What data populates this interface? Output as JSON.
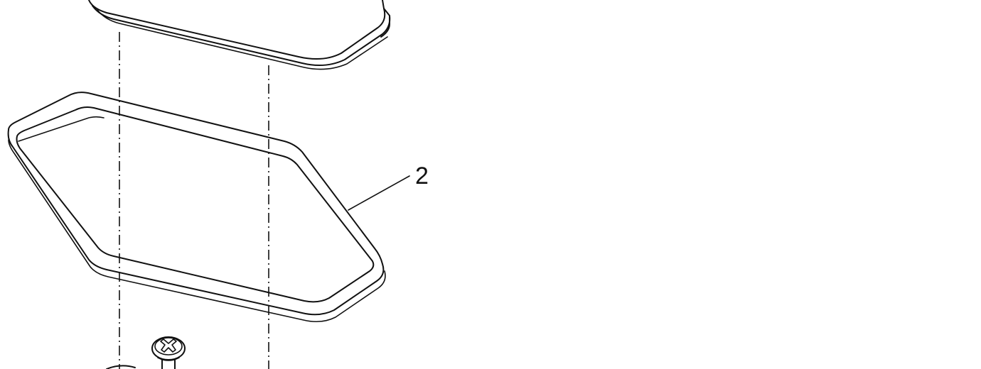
{
  "callouts": [
    {
      "label": "2"
    }
  ]
}
